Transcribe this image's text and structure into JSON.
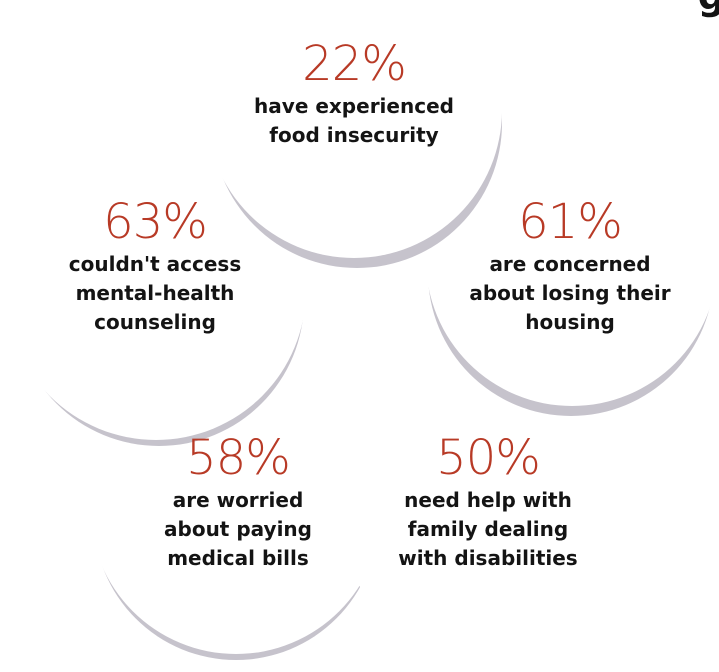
{
  "colors": {
    "accent": "#b83a26",
    "text": "#141414",
    "shadow": "#c6c3cc",
    "circle": "#ffffff"
  },
  "header": {
    "partial_text": "g"
  },
  "stats": [
    {
      "percent": "22%",
      "lines": [
        "have experienced",
        "food insecurity"
      ]
    },
    {
      "percent": "63%",
      "lines": [
        "couldn't access",
        "mental-health",
        "counseling"
      ]
    },
    {
      "percent": "61%",
      "lines": [
        "are concerned",
        "about losing their",
        "housing"
      ]
    },
    {
      "percent": "58%",
      "lines": [
        "are worried",
        "about paying",
        "medical bills"
      ]
    },
    {
      "percent": "50%",
      "lines": [
        "need help with",
        "family dealing",
        "with disabilities"
      ]
    }
  ]
}
